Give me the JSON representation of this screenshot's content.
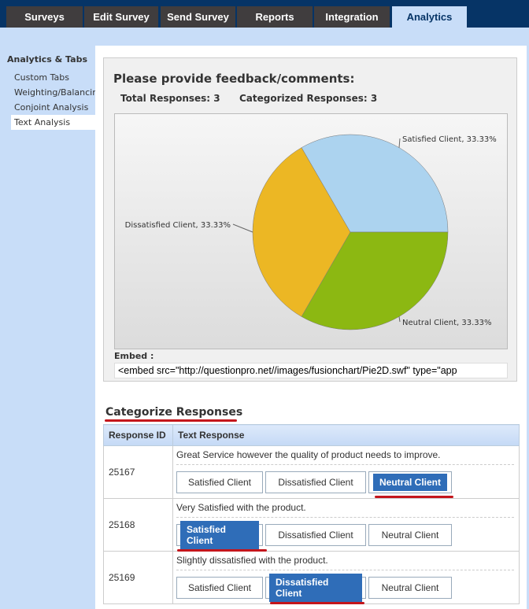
{
  "tabs": [
    {
      "label": "Surveys"
    },
    {
      "label": "Edit Survey"
    },
    {
      "label": "Send Survey"
    },
    {
      "label": "Reports"
    },
    {
      "label": "Integration"
    },
    {
      "label": "Analytics",
      "active": true
    }
  ],
  "sidebar": {
    "title": "Analytics & Tabs",
    "items": [
      {
        "label": "Custom Tabs"
      },
      {
        "label": "Weighting/Balancing"
      },
      {
        "label": "Conjoint Analysis"
      },
      {
        "label": "Text Analysis",
        "active": true
      }
    ]
  },
  "question": "Please provide feedback/comments:",
  "stats": {
    "total": "Total Responses: 3",
    "categorized": "Categorized Responses: 3"
  },
  "chart_data": {
    "type": "pie",
    "slices": [
      {
        "name": "Satisfied Client",
        "value": 33.33,
        "label": "Satisfied Client, 33.33%",
        "color": "#acd3ef"
      },
      {
        "name": "Neutral Client",
        "value": 33.33,
        "label": "Neutral Client, 33.33%",
        "color": "#8cb812"
      },
      {
        "name": "Dissatisfied Client",
        "value": 33.33,
        "label": "Dissatisfied Client, 33.33%",
        "color": "#ecb724"
      }
    ]
  },
  "embed": {
    "label": "Embed :",
    "value": "<embed src=\"http://questionpro.net//images/fusionchart/Pie2D.swf\"  type=\"app"
  },
  "categorize": {
    "title": "Categorize Responses",
    "headers": [
      "Response ID",
      "Text Response"
    ],
    "rows": [
      {
        "id": "25167",
        "text": "Great Service however the quality of product needs to improve.",
        "buttons": [
          "Satisfied Client",
          "Dissatisfied Client",
          "Neutral Client"
        ],
        "selected": 2
      },
      {
        "id": "25168",
        "text": "Very Satisfied with the product.",
        "buttons": [
          "Satisfied Client",
          "Dissatisfied Client",
          "Neutral Client"
        ],
        "selected": 0
      },
      {
        "id": "25169",
        "text": "Slightly dissatisfied with the product.",
        "buttons": [
          "Satisfied Client",
          "Dissatisfied Client",
          "Neutral Client"
        ],
        "selected": 1
      }
    ]
  }
}
